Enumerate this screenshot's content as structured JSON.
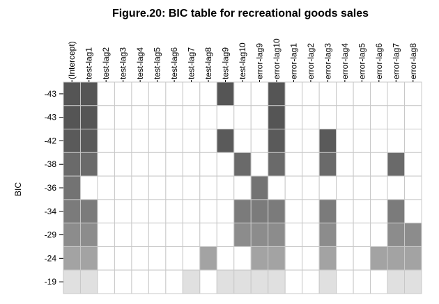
{
  "chart_data": {
    "type": "heatmap",
    "title": "Figure.20: BIC table for recreational goods sales",
    "ylabel": "BIC",
    "xlabel": "",
    "columns": [
      "(Intercept)",
      "test-lag1",
      "test-lag2",
      "test-lag3",
      "test-lag4",
      "test-lag5",
      "test-lag6",
      "test-lag7",
      "test-lag8",
      "test-lag9",
      "test-lag10",
      "error-lag9",
      "error-lag10",
      "error-lag1",
      "error-lag2",
      "error-lag3",
      "error-lag4",
      "error-lag5",
      "error-lag6",
      "error-lag7",
      "error-lag8"
    ],
    "rows": [
      {
        "bic": "-43",
        "color": "#555555",
        "included": [
          "(Intercept)",
          "test-lag1",
          "test-lag9",
          "error-lag10"
        ]
      },
      {
        "bic": "-43",
        "color": "#555555",
        "included": [
          "(Intercept)",
          "test-lag1",
          "error-lag10"
        ]
      },
      {
        "bic": "-42",
        "color": "#5a5a5a",
        "included": [
          "(Intercept)",
          "test-lag1",
          "test-lag9",
          "error-lag10",
          "error-lag3"
        ]
      },
      {
        "bic": "-38",
        "color": "#6a6a6a",
        "included": [
          "(Intercept)",
          "test-lag1",
          "test-lag10",
          "error-lag10",
          "error-lag3",
          "error-lag7"
        ]
      },
      {
        "bic": "-36",
        "color": "#737373",
        "included": [
          "(Intercept)",
          "error-lag9"
        ]
      },
      {
        "bic": "-34",
        "color": "#7b7b7b",
        "included": [
          "(Intercept)",
          "test-lag1",
          "test-lag10",
          "error-lag9",
          "error-lag10",
          "error-lag3",
          "error-lag7"
        ]
      },
      {
        "bic": "-29",
        "color": "#8c8c8c",
        "included": [
          "(Intercept)",
          "test-lag1",
          "test-lag10",
          "error-lag9",
          "error-lag10",
          "error-lag3",
          "error-lag7",
          "error-lag8"
        ]
      },
      {
        "bic": "-24",
        "color": "#a3a3a3",
        "included": [
          "(Intercept)",
          "test-lag1",
          "test-lag8",
          "error-lag9",
          "error-lag10",
          "error-lag3",
          "error-lag6",
          "error-lag7",
          "error-lag8"
        ]
      },
      {
        "bic": "-19",
        "color": "#e0e0e0",
        "included": [
          "(Intercept)",
          "test-lag1",
          "test-lag7",
          "test-lag9",
          "test-lag10",
          "error-lag9",
          "error-lag10",
          "error-lag3",
          "error-lag7",
          "error-lag8"
        ]
      }
    ],
    "empty_color": "#ffffff",
    "grid_color": "#c8c8c8"
  }
}
